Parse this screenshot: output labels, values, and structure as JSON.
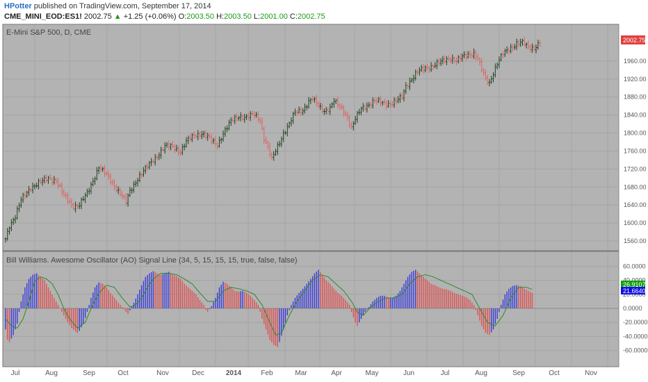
{
  "header": {
    "author": "HPotter",
    "published_text": "published on TradingView.com, September 17, 2014",
    "symbol": "CME_MINI_EOD:ES1!",
    "last": "2002.75",
    "change": "+1.25 (+0.06%)",
    "o_label": "O:",
    "o_value": "2003.50",
    "h_label": "H:",
    "h_value": "2003.50",
    "l_label": "L:",
    "l_value": "2001.00",
    "c_label": "C:",
    "c_value": "2002.75"
  },
  "colors": {
    "pane_bg": "#b3b3b3",
    "bull": "#1f3f1f",
    "bear": "#e06060",
    "ao_up": "#3a3adf",
    "ao_down": "#e05050",
    "signal": "#2a8a2a",
    "price_tag": "#e04040",
    "signal_tag": "#13a013",
    "ao_tag": "#1010e0"
  },
  "chart_data": [
    {
      "type": "candlestick",
      "title": "E-Mini S&P 500, D, CME",
      "ylim": [
        1540,
        2040
      ],
      "y_ticks": [
        "1560.00",
        "1600.00",
        "1640.00",
        "1680.00",
        "1720.00",
        "1760.00",
        "1800.00",
        "1840.00",
        "1880.00",
        "1920.00",
        "1960.00"
      ],
      "last_price_label": "2002.75",
      "x_labels": [
        "Jul",
        "Aug",
        "Sep",
        "Oct",
        "Nov",
        "Dec",
        "2014",
        "Feb",
        "Mar",
        "Apr",
        "May",
        "Jun",
        "Jul",
        "Aug",
        "Sep",
        "Oct",
        "Nov"
      ],
      "close_path": [
        [
          0,
          1565
        ],
        [
          2,
          1595
        ],
        [
          5,
          1615
        ],
        [
          8,
          1650
        ],
        [
          13,
          1680
        ],
        [
          18,
          1690
        ],
        [
          22,
          1700
        ],
        [
          26,
          1695
        ],
        [
          30,
          1660
        ],
        [
          35,
          1638
        ],
        [
          38,
          1640
        ],
        [
          42,
          1665
        ],
        [
          46,
          1705
        ],
        [
          48,
          1725
        ],
        [
          53,
          1700
        ],
        [
          57,
          1678
        ],
        [
          60,
          1660
        ],
        [
          62,
          1645
        ],
        [
          64,
          1670
        ],
        [
          68,
          1700
        ],
        [
          72,
          1720
        ],
        [
          78,
          1750
        ],
        [
          82,
          1770
        ],
        [
          86,
          1770
        ],
        [
          90,
          1760
        ],
        [
          93,
          1780
        ],
        [
          97,
          1795
        ],
        [
          101,
          1800
        ],
        [
          104,
          1790
        ],
        [
          107,
          1780
        ],
        [
          109,
          1775
        ],
        [
          112,
          1800
        ],
        [
          116,
          1825
        ],
        [
          120,
          1838
        ],
        [
          124,
          1835
        ],
        [
          128,
          1840
        ],
        [
          131,
          1830
        ],
        [
          133,
          1790
        ],
        [
          135,
          1768
        ],
        [
          137,
          1740
        ],
        [
          140,
          1770
        ],
        [
          143,
          1800
        ],
        [
          146,
          1820
        ],
        [
          149,
          1845
        ],
        [
          153,
          1852
        ],
        [
          156,
          1870
        ],
        [
          158,
          1875
        ],
        [
          161,
          1860
        ],
        [
          164,
          1850
        ],
        [
          167,
          1855
        ],
        [
          169,
          1870
        ],
        [
          171,
          1862
        ],
        [
          174,
          1850
        ],
        [
          176,
          1835
        ],
        [
          178,
          1810
        ],
        [
          180,
          1830
        ],
        [
          183,
          1855
        ],
        [
          186,
          1862
        ],
        [
          190,
          1870
        ],
        [
          194,
          1868
        ],
        [
          198,
          1865
        ],
        [
          201,
          1870
        ],
        [
          204,
          1880
        ],
        [
          206,
          1905
        ],
        [
          209,
          1920
        ],
        [
          212,
          1935
        ],
        [
          216,
          1945
        ],
        [
          220,
          1950
        ],
        [
          223,
          1955
        ],
        [
          226,
          1962
        ],
        [
          229,
          1968
        ],
        [
          232,
          1960
        ],
        [
          235,
          1968
        ],
        [
          238,
          1975
        ],
        [
          241,
          1978
        ],
        [
          243,
          1965
        ],
        [
          245,
          1940
        ],
        [
          247,
          1920
        ],
        [
          249,
          1912
        ],
        [
          251,
          1935
        ],
        [
          253,
          1955
        ],
        [
          256,
          1975
        ],
        [
          260,
          1990
        ],
        [
          263,
          2000
        ],
        [
          266,
          2000
        ],
        [
          269,
          1990
        ],
        [
          272,
          1990
        ],
        [
          275,
          2002
        ]
      ]
    },
    {
      "type": "bar",
      "title": "Bill Williams. Awesome Oscillator (AO) Signal Line (34, 5, 15, 15, 15, true, false, false)",
      "ylim": [
        -60,
        60
      ],
      "y_ticks": [
        "60.0000",
        "40.0000",
        "20.0000",
        "0.0000",
        "-20.0000",
        "-40.0000",
        "-60.0000"
      ],
      "signal_label": "26.9107",
      "ao_label": "21.6640",
      "ao_path": [
        [
          0,
          -30
        ],
        [
          1,
          -45
        ],
        [
          2,
          -48
        ],
        [
          4,
          -38
        ],
        [
          6,
          -22
        ],
        [
          7,
          -5
        ],
        [
          8,
          10
        ],
        [
          10,
          30
        ],
        [
          12,
          42
        ],
        [
          14,
          48
        ],
        [
          16,
          50
        ],
        [
          18,
          45
        ],
        [
          20,
          40
        ],
        [
          22,
          30
        ],
        [
          24,
          20
        ],
        [
          26,
          10
        ],
        [
          28,
          0
        ],
        [
          30,
          -10
        ],
        [
          32,
          -20
        ],
        [
          34,
          -28
        ],
        [
          36,
          -33
        ],
        [
          37,
          -35
        ],
        [
          38,
          -32
        ],
        [
          40,
          -22
        ],
        [
          42,
          -5
        ],
        [
          44,
          15
        ],
        [
          46,
          30
        ],
        [
          48,
          37
        ],
        [
          50,
          35
        ],
        [
          52,
          30
        ],
        [
          54,
          22
        ],
        [
          56,
          15
        ],
        [
          58,
          8
        ],
        [
          60,
          2
        ],
        [
          62,
          -5
        ],
        [
          63,
          -8
        ],
        [
          64,
          -3
        ],
        [
          66,
          8
        ],
        [
          68,
          20
        ],
        [
          70,
          33
        ],
        [
          72,
          45
        ],
        [
          74,
          50
        ],
        [
          76,
          53
        ],
        [
          78,
          50
        ],
        [
          80,
          48
        ],
        [
          82,
          50
        ],
        [
          84,
          52
        ],
        [
          86,
          48
        ],
        [
          88,
          46
        ],
        [
          90,
          42
        ],
        [
          92,
          35
        ],
        [
          94,
          30
        ],
        [
          96,
          25
        ],
        [
          98,
          20
        ],
        [
          100,
          12
        ],
        [
          102,
          5
        ],
        [
          103,
          -2
        ],
        [
          104,
          -5
        ],
        [
          106,
          3
        ],
        [
          108,
          15
        ],
        [
          110,
          30
        ],
        [
          112,
          38
        ],
        [
          114,
          35
        ],
        [
          116,
          30
        ],
        [
          118,
          25
        ],
        [
          120,
          24
        ],
        [
          122,
          25
        ],
        [
          124,
          22
        ],
        [
          126,
          18
        ],
        [
          128,
          12
        ],
        [
          130,
          5
        ],
        [
          132,
          -15
        ],
        [
          134,
          -30
        ],
        [
          136,
          -45
        ],
        [
          138,
          -52
        ],
        [
          140,
          -55
        ],
        [
          141,
          -48
        ],
        [
          143,
          -30
        ],
        [
          145,
          -10
        ],
        [
          147,
          5
        ],
        [
          149,
          15
        ],
        [
          151,
          22
        ],
        [
          153,
          28
        ],
        [
          155,
          35
        ],
        [
          157,
          42
        ],
        [
          159,
          50
        ],
        [
          161,
          55
        ],
        [
          163,
          48
        ],
        [
          165,
          40
        ],
        [
          167,
          35
        ],
        [
          169,
          28
        ],
        [
          171,
          22
        ],
        [
          173,
          18
        ],
        [
          175,
          12
        ],
        [
          177,
          5
        ],
        [
          178,
          -5
        ],
        [
          180,
          -20
        ],
        [
          181,
          -25
        ],
        [
          183,
          -15
        ],
        [
          185,
          -5
        ],
        [
          187,
          2
        ],
        [
          189,
          10
        ],
        [
          191,
          15
        ],
        [
          193,
          18
        ],
        [
          195,
          18
        ],
        [
          197,
          15
        ],
        [
          199,
          15
        ],
        [
          201,
          18
        ],
        [
          203,
          25
        ],
        [
          205,
          35
        ],
        [
          207,
          45
        ],
        [
          209,
          52
        ],
        [
          211,
          55
        ],
        [
          213,
          50
        ],
        [
          215,
          45
        ],
        [
          217,
          40
        ],
        [
          219,
          35
        ],
        [
          221,
          33
        ],
        [
          223,
          30
        ],
        [
          225,
          28
        ],
        [
          227,
          27
        ],
        [
          229,
          25
        ],
        [
          231,
          22
        ],
        [
          233,
          20
        ],
        [
          235,
          18
        ],
        [
          237,
          16
        ],
        [
          239,
          12
        ],
        [
          241,
          5
        ],
        [
          243,
          -10
        ],
        [
          245,
          -25
        ],
        [
          247,
          -35
        ],
        [
          249,
          -38
        ],
        [
          251,
          -30
        ],
        [
          253,
          -15
        ],
        [
          255,
          5
        ],
        [
          257,
          20
        ],
        [
          259,
          28
        ],
        [
          261,
          32
        ],
        [
          263,
          33
        ],
        [
          265,
          32
        ],
        [
          267,
          28
        ],
        [
          269,
          25
        ],
        [
          271,
          22
        ]
      ],
      "signal_path": [
        [
          0,
          -15
        ],
        [
          3,
          -25
        ],
        [
          6,
          -28
        ],
        [
          9,
          -15
        ],
        [
          12,
          10
        ],
        [
          15,
          38
        ],
        [
          18,
          45
        ],
        [
          21,
          42
        ],
        [
          24,
          35
        ],
        [
          27,
          20
        ],
        [
          30,
          0
        ],
        [
          33,
          -15
        ],
        [
          37,
          -28
        ],
        [
          41,
          -20
        ],
        [
          44,
          0
        ],
        [
          48,
          22
        ],
        [
          52,
          33
        ],
        [
          56,
          30
        ],
        [
          60,
          15
        ],
        [
          64,
          2
        ],
        [
          67,
          5
        ],
        [
          70,
          15
        ],
        [
          73,
          30
        ],
        [
          76,
          42
        ],
        [
          80,
          50
        ],
        [
          84,
          50
        ],
        [
          88,
          48
        ],
        [
          92,
          42
        ],
        [
          96,
          35
        ],
        [
          100,
          22
        ],
        [
          104,
          10
        ],
        [
          108,
          10
        ],
        [
          112,
          25
        ],
        [
          116,
          30
        ],
        [
          120,
          28
        ],
        [
          124,
          25
        ],
        [
          128,
          20
        ],
        [
          132,
          5
        ],
        [
          136,
          -20
        ],
        [
          139,
          -38
        ],
        [
          142,
          -35
        ],
        [
          146,
          -10
        ],
        [
          150,
          10
        ],
        [
          154,
          25
        ],
        [
          158,
          40
        ],
        [
          162,
          48
        ],
        [
          166,
          45
        ],
        [
          170,
          35
        ],
        [
          174,
          25
        ],
        [
          178,
          10
        ],
        [
          181,
          -5
        ],
        [
          184,
          -10
        ],
        [
          188,
          2
        ],
        [
          192,
          10
        ],
        [
          196,
          15
        ],
        [
          200,
          15
        ],
        [
          204,
          20
        ],
        [
          208,
          35
        ],
        [
          212,
          45
        ],
        [
          216,
          48
        ],
        [
          220,
          45
        ],
        [
          224,
          40
        ],
        [
          228,
          35
        ],
        [
          232,
          30
        ],
        [
          236,
          25
        ],
        [
          240,
          20
        ],
        [
          244,
          0
        ],
        [
          248,
          -20
        ],
        [
          252,
          -25
        ],
        [
          256,
          -10
        ],
        [
          260,
          15
        ],
        [
          264,
          30
        ],
        [
          268,
          30
        ],
        [
          271,
          27
        ]
      ]
    }
  ]
}
